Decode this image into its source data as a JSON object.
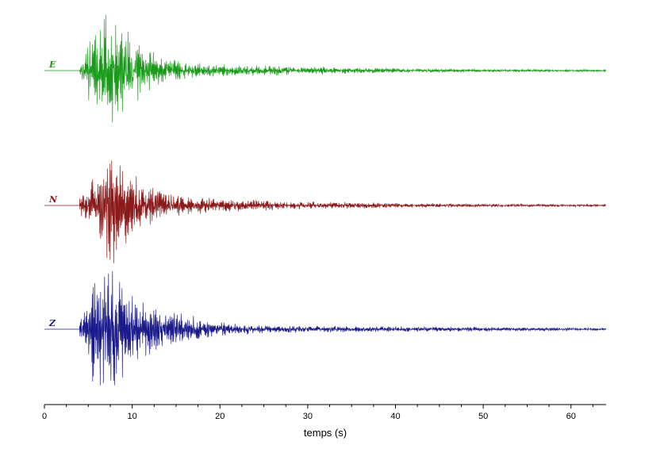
{
  "chart_data": {
    "type": "line",
    "title": "",
    "xlabel": "temps (s)",
    "ylabel": "",
    "xlim": [
      0,
      64
    ],
    "xticks": [
      0,
      10,
      20,
      30,
      40,
      50,
      60
    ],
    "xtick_labels": [
      "0",
      "10",
      "20",
      "30",
      "40",
      "50",
      "60"
    ],
    "minor_tick_step": 2.5,
    "grid": false,
    "legend": "none",
    "series": [
      {
        "name": "E",
        "color": "#1a9a1a",
        "onset_s": 4.0,
        "envelope": [
          [
            4,
            0.12
          ],
          [
            5,
            0.45
          ],
          [
            6,
            0.75
          ],
          [
            7,
            1.0
          ],
          [
            8,
            0.9
          ],
          [
            9,
            0.85
          ],
          [
            10,
            0.55
          ],
          [
            12,
            0.35
          ],
          [
            14,
            0.2
          ],
          [
            16,
            0.15
          ],
          [
            20,
            0.1
          ],
          [
            25,
            0.09
          ],
          [
            30,
            0.07
          ],
          [
            40,
            0.04
          ],
          [
            50,
            0.025
          ],
          [
            64,
            0.02
          ]
        ]
      },
      {
        "name": "N",
        "color": "#8b1a1a",
        "onset_s": 4.0,
        "envelope": [
          [
            4,
            0.12
          ],
          [
            5,
            0.35
          ],
          [
            6,
            0.5
          ],
          [
            7,
            0.9
          ],
          [
            8,
            0.85
          ],
          [
            9,
            0.8
          ],
          [
            10,
            0.5
          ],
          [
            12,
            0.3
          ],
          [
            14,
            0.2
          ],
          [
            16,
            0.15
          ],
          [
            20,
            0.1
          ],
          [
            25,
            0.08
          ],
          [
            30,
            0.06
          ],
          [
            40,
            0.04
          ],
          [
            50,
            0.025
          ],
          [
            64,
            0.02
          ]
        ]
      },
      {
        "name": "Z",
        "color": "#1a1a8b",
        "onset_s": 4.0,
        "envelope": [
          [
            4,
            0.15
          ],
          [
            5,
            0.5
          ],
          [
            6,
            1.0
          ],
          [
            7,
            0.9
          ],
          [
            8,
            0.9
          ],
          [
            9,
            0.7
          ],
          [
            10,
            0.5
          ],
          [
            12,
            0.35
          ],
          [
            15,
            0.25
          ],
          [
            18,
            0.15
          ],
          [
            20,
            0.1
          ],
          [
            25,
            0.06
          ],
          [
            30,
            0.05
          ],
          [
            40,
            0.04
          ],
          [
            50,
            0.03
          ],
          [
            64,
            0.02
          ]
        ]
      }
    ]
  }
}
